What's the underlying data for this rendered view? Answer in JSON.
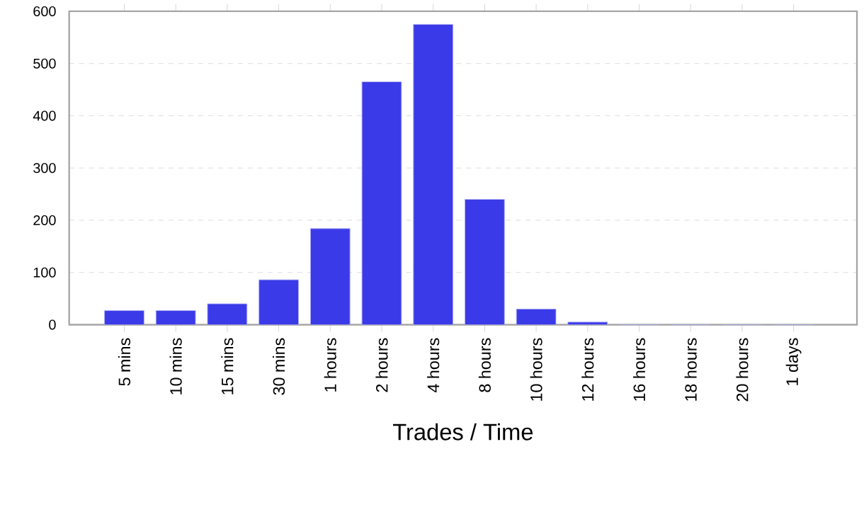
{
  "chart_data": {
    "type": "bar",
    "xlabel": "Trades / Time",
    "categories": [
      "5 mins",
      "10 mins",
      "15 mins",
      "30 mins",
      "1 hours",
      "2 hours",
      "4 hours",
      "8 hours",
      "10 hours",
      "12 hours",
      "16 hours",
      "18 hours",
      "20 hours",
      "1 days"
    ],
    "values": [
      27,
      27,
      40,
      86,
      184,
      465,
      575,
      240,
      30,
      5,
      0,
      0,
      0,
      0
    ],
    "color": "#3a3ae8",
    "ylim": [
      0,
      600
    ],
    "yticks": [
      0,
      100,
      200,
      300,
      400,
      500,
      600
    ],
    "grid": "y"
  }
}
